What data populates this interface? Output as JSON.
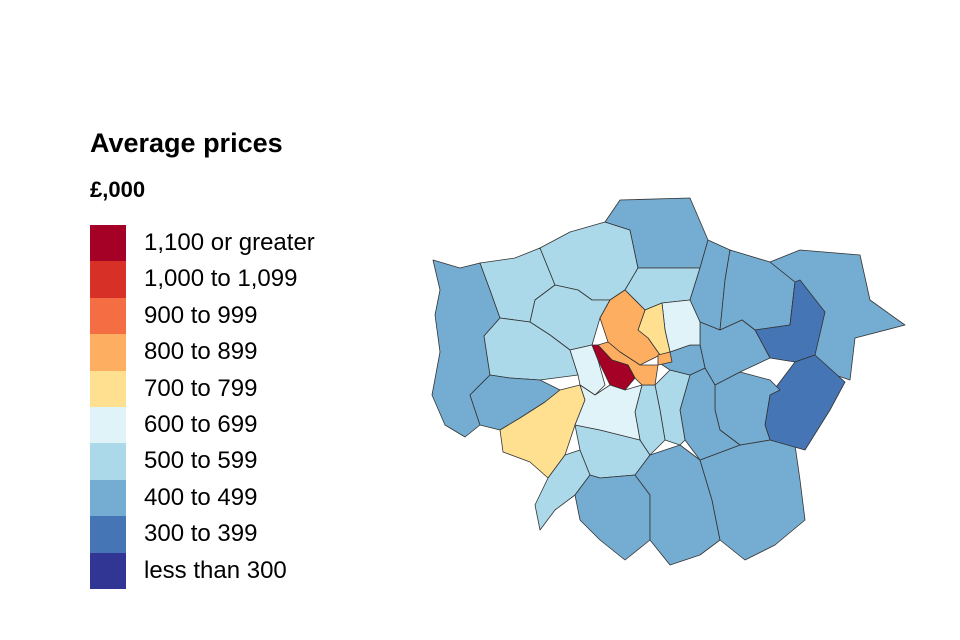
{
  "legend": {
    "title": "Average prices",
    "unit": "£,000",
    "bins": [
      {
        "label": "1,100 or greater",
        "color": "#a50026"
      },
      {
        "label": "1,000 to 1,099",
        "color": "#d73027"
      },
      {
        "label": "900 to 999",
        "color": "#f46d43"
      },
      {
        "label": "800 to 899",
        "color": "#fdae61"
      },
      {
        "label": "700 to 799",
        "color": "#fee090"
      },
      {
        "label": "600 to 699",
        "color": "#e0f3f8"
      },
      {
        "label": "500 to 599",
        "color": "#abd9e9"
      },
      {
        "label": "400 to 499",
        "color": "#74add1"
      },
      {
        "label": "300 to 399",
        "color": "#4575b4"
      },
      {
        "label": "less than 300",
        "color": "#313695"
      }
    ]
  },
  "map": {
    "region": "London boroughs",
    "areas": [
      {
        "id": "barnet",
        "bin": "500 to 599"
      },
      {
        "id": "enfield",
        "bin": "400 to 499"
      },
      {
        "id": "haringey",
        "bin": "500 to 599"
      },
      {
        "id": "waltham-forest",
        "bin": "400 to 499"
      },
      {
        "id": "redbridge",
        "bin": "400 to 499"
      },
      {
        "id": "havering",
        "bin": "400 to 499"
      },
      {
        "id": "barking-dagenham",
        "bin": "300 to 399"
      },
      {
        "id": "newham",
        "bin": "400 to 499"
      },
      {
        "id": "hackney",
        "bin": "600 to 699"
      },
      {
        "id": "islington",
        "bin": "700 to 799"
      },
      {
        "id": "camden",
        "bin": "800 to 899"
      },
      {
        "id": "westminster",
        "bin": "800 to 899"
      },
      {
        "id": "kensington-chelsea",
        "bin": "1,100 or greater"
      },
      {
        "id": "city-of-london",
        "bin": "800 to 899"
      },
      {
        "id": "tower-hamlets",
        "bin": "400 to 499"
      },
      {
        "id": "hammersmith-fulham",
        "bin": "600 to 699"
      },
      {
        "id": "wandsworth",
        "bin": "600 to 699"
      },
      {
        "id": "lambeth",
        "bin": "500 to 599"
      },
      {
        "id": "southwark",
        "bin": "500 to 599"
      },
      {
        "id": "lewisham",
        "bin": "400 to 499"
      },
      {
        "id": "greenwich",
        "bin": "400 to 499"
      },
      {
        "id": "bexley",
        "bin": "300 to 399"
      },
      {
        "id": "bromley",
        "bin": "400 to 499"
      },
      {
        "id": "croydon",
        "bin": "400 to 499"
      },
      {
        "id": "sutton",
        "bin": "400 to 499"
      },
      {
        "id": "merton",
        "bin": "500 to 599"
      },
      {
        "id": "kingston",
        "bin": "500 to 599"
      },
      {
        "id": "richmond",
        "bin": "700 to 799"
      },
      {
        "id": "hounslow",
        "bin": "400 to 499"
      },
      {
        "id": "hillingdon",
        "bin": "400 to 499"
      },
      {
        "id": "ealing",
        "bin": "500 to 599"
      },
      {
        "id": "harrow",
        "bin": "500 to 599"
      },
      {
        "id": "brent",
        "bin": "500 to 599"
      }
    ]
  }
}
